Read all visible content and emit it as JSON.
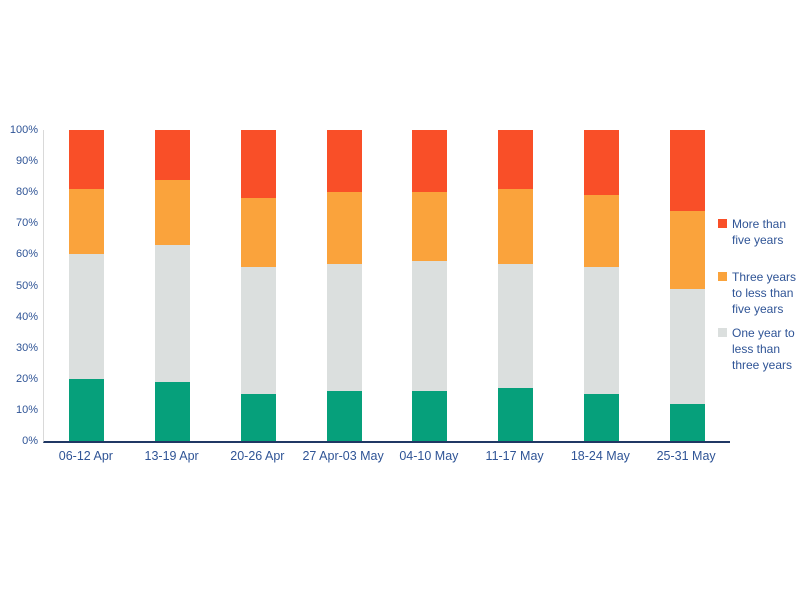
{
  "chart_data": {
    "type": "bar",
    "subtype": "stacked-100-percent",
    "title": "",
    "xlabel": "",
    "ylabel": "",
    "grid": false,
    "categories": [
      "06-12 Apr",
      "13-19 Apr",
      "20-26 Apr",
      "27 Apr-03 May",
      "04-10 May",
      "11-17 May",
      "18-24 May",
      "25-31 May"
    ],
    "series": [
      {
        "key": "green-bottom-segment",
        "legend_label": null,
        "color": "#06a07b",
        "values": [
          20,
          19,
          15,
          16,
          16,
          17,
          15,
          12
        ]
      },
      {
        "key": "one-year-to-less-than-three-years",
        "legend_label": "One year to less than three years",
        "color": "#dbdfde",
        "values": [
          40,
          44,
          41,
          41,
          42,
          40,
          41,
          37
        ]
      },
      {
        "key": "three-years-to-less-than-five-years",
        "legend_label": "Three years to less than five years",
        "color": "#faa33c",
        "values": [
          21,
          21,
          22,
          23,
          22,
          24,
          23,
          25
        ]
      },
      {
        "key": "more-than-five-years",
        "legend_label": "More than five years",
        "color": "#f94f28",
        "values": [
          19,
          16,
          22,
          20,
          20,
          19,
          21,
          26
        ]
      }
    ],
    "y_axis": {
      "min": 0,
      "max": 100,
      "tick_step": 10,
      "tick_labels": [
        "0%",
        "10%",
        "20%",
        "30%",
        "40%",
        "50%",
        "60%",
        "70%",
        "80%",
        "90%",
        "100%"
      ]
    },
    "legend": {
      "position": "right",
      "items": [
        {
          "color": "#f94f28",
          "lines": [
            "More than",
            "five years"
          ]
        },
        {
          "color": "#faa33c",
          "lines": [
            "Three years",
            "to less than",
            "five years"
          ]
        },
        {
          "color": "#dbdfde",
          "lines": [
            "One year to",
            "less than",
            "three years"
          ]
        }
      ]
    },
    "colors": {
      "axis_line_bottom": "#203864",
      "axis_line_left": "#d9d9d9",
      "label_text": "#2f5496",
      "background": "#ffffff"
    }
  }
}
